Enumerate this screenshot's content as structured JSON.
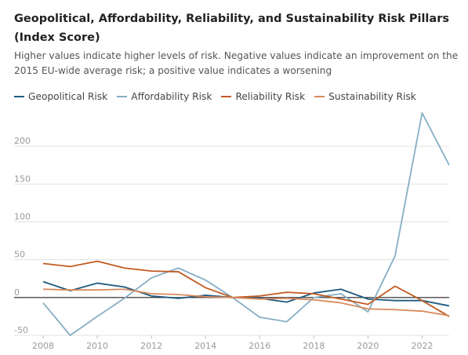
{
  "chart_data": {
    "type": "line",
    "title": "Geopolitical, Affordability, Reliability, and Sustainability Risk Pillars (Index Score)",
    "subtitle": "Higher values indicate higher levels of risk. Negative values indicate an improvement on the 2015 EU-wide average risk; a positive value indicates a worsening",
    "xlabel": "",
    "ylabel": "",
    "x": [
      2008,
      2009,
      2010,
      2011,
      2012,
      2013,
      2014,
      2015,
      2016,
      2017,
      2018,
      2019,
      2020,
      2021,
      2022,
      2023
    ],
    "xlim": [
      2008,
      2023
    ],
    "ylim": [
      -50,
      250
    ],
    "x_ticks": [
      "2008",
      "2010",
      "2012",
      "2014",
      "2016",
      "2018",
      "2020",
      "2022"
    ],
    "y_ticks": [
      "-50",
      "0",
      "50",
      "100",
      "150",
      "200"
    ],
    "grid": "horizontal",
    "legend_position": "top",
    "series": [
      {
        "name": "Geopolitical Risk",
        "color": "#1f5b80",
        "values": [
          21,
          9,
          19,
          14,
          2,
          -1,
          3,
          0,
          -1,
          -6,
          6,
          11,
          -2,
          -4,
          -4,
          -11
        ]
      },
      {
        "name": "Affordability Risk",
        "color": "#86aec4",
        "values": [
          -7,
          -50,
          -25,
          -1,
          26,
          39,
          23,
          0,
          -26,
          -32,
          0,
          5,
          -19,
          55,
          244,
          175
        ]
      },
      {
        "name": "Reliability Risk",
        "color": "#c05a22",
        "values": [
          45,
          41,
          48,
          39,
          35,
          34,
          13,
          0,
          2,
          7,
          5,
          -2,
          -9,
          15,
          -4,
          -25
        ]
      },
      {
        "name": "Sustainability Risk",
        "color": "#d98a5c",
        "values": [
          11,
          10,
          10,
          11,
          5,
          4,
          1,
          0,
          -2,
          -1,
          -3,
          -7,
          -15,
          -16,
          -18,
          -24
        ]
      }
    ]
  }
}
